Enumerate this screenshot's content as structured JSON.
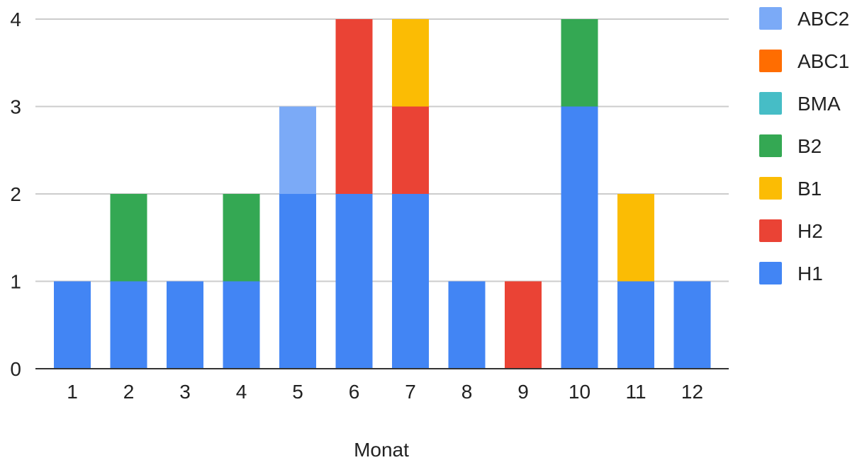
{
  "chart_data": {
    "type": "bar",
    "stacked": true,
    "categories": [
      "1",
      "2",
      "3",
      "4",
      "5",
      "6",
      "7",
      "8",
      "9",
      "10",
      "11",
      "12"
    ],
    "xlabel": "Monat",
    "ylabel": "",
    "ylim": [
      0,
      4
    ],
    "yticks": [
      "0",
      "1",
      "2",
      "3",
      "4"
    ],
    "grid": true,
    "legend_position": "right",
    "series": [
      {
        "name": "H1",
        "color": "#4285F4",
        "values": [
          1,
          1,
          1,
          1,
          2,
          2,
          2,
          1,
          0,
          3,
          1,
          1
        ]
      },
      {
        "name": "H2",
        "color": "#EA4335",
        "values": [
          0,
          0,
          0,
          0,
          0,
          2,
          1,
          0,
          1,
          0,
          0,
          0
        ]
      },
      {
        "name": "B1",
        "color": "#FBBC04",
        "values": [
          0,
          0,
          0,
          0,
          0,
          0,
          1,
          0,
          0,
          0,
          1,
          0
        ]
      },
      {
        "name": "B2",
        "color": "#34A853",
        "values": [
          0,
          1,
          0,
          1,
          0,
          0,
          0,
          0,
          0,
          1,
          0,
          0
        ]
      },
      {
        "name": "BMA",
        "color": "#46BDC6",
        "values": [
          0,
          0,
          0,
          0,
          0,
          0,
          0,
          0,
          0,
          0,
          0,
          0
        ]
      },
      {
        "name": "ABC1",
        "color": "#FF6D01",
        "values": [
          0,
          0,
          0,
          0,
          0,
          0,
          0,
          0,
          0,
          0,
          0,
          0
        ]
      },
      {
        "name": "ABC2",
        "color": "#7BAAF7",
        "values": [
          0,
          0,
          0,
          0,
          1,
          0,
          0,
          0,
          0,
          0,
          0,
          0
        ]
      }
    ],
    "legend_order": [
      "ABC2",
      "ABC1",
      "BMA",
      "B2",
      "B1",
      "H2",
      "H1"
    ]
  }
}
